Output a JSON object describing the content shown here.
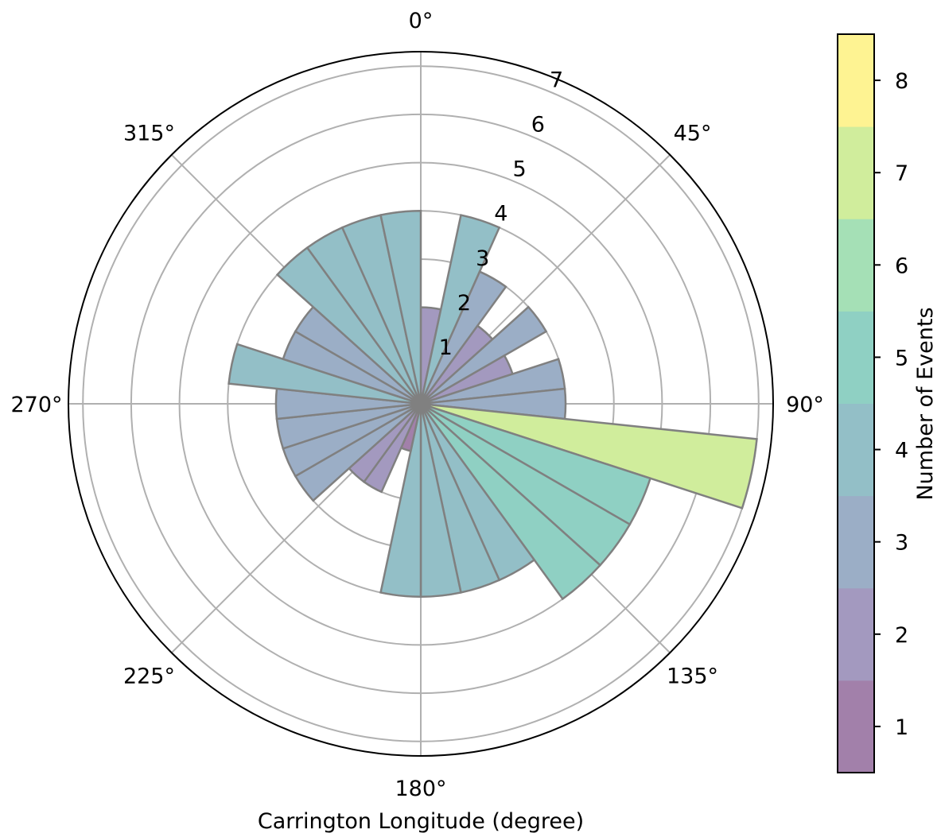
{
  "chart_data": {
    "type": "polar-bar",
    "xlabel": "Carrington Longitude (degree)",
    "theta_zero": "top",
    "theta_direction": "clockwise",
    "theta_ticks": [
      {
        "angle": 0,
        "label": "0°"
      },
      {
        "angle": 45,
        "label": "45°"
      },
      {
        "angle": 90,
        "label": "90°"
      },
      {
        "angle": 135,
        "label": "135°"
      },
      {
        "angle": 180,
        "label": "180°"
      },
      {
        "angle": 225,
        "label": "225°"
      },
      {
        "angle": 270,
        "label": "270°"
      },
      {
        "angle": 315,
        "label": "315°"
      }
    ],
    "r_ticks": [
      1,
      2,
      3,
      4,
      5,
      6,
      7
    ],
    "r_tick_labels": [
      "1",
      "2",
      "3",
      "4",
      "5",
      "6",
      "7"
    ],
    "rlim": [
      0,
      7.3
    ],
    "grid": true,
    "bin_width_deg": 12,
    "bars": [
      {
        "center": 6,
        "value": 2
      },
      {
        "center": 18,
        "value": 4
      },
      {
        "center": 30,
        "value": 3
      },
      {
        "center": 42,
        "value": 2
      },
      {
        "center": 54,
        "value": 3
      },
      {
        "center": 66,
        "value": 2
      },
      {
        "center": 78,
        "value": 3
      },
      {
        "center": 90,
        "value": 3
      },
      {
        "center": 102,
        "value": 7
      },
      {
        "center": 114,
        "value": 5
      },
      {
        "center": 126,
        "value": 5
      },
      {
        "center": 138,
        "value": 5
      },
      {
        "center": 150,
        "value": 4
      },
      {
        "center": 162,
        "value": 4
      },
      {
        "center": 174,
        "value": 4
      },
      {
        "center": 186,
        "value": 4
      },
      {
        "center": 198,
        "value": 1
      },
      {
        "center": 210,
        "value": 2
      },
      {
        "center": 222,
        "value": 2
      },
      {
        "center": 234,
        "value": 3
      },
      {
        "center": 246,
        "value": 3
      },
      {
        "center": 258,
        "value": 3
      },
      {
        "center": 270,
        "value": 3
      },
      {
        "center": 282,
        "value": 4
      },
      {
        "center": 294,
        "value": 3
      },
      {
        "center": 306,
        "value": 3
      },
      {
        "center": 318,
        "value": 4
      },
      {
        "center": 330,
        "value": 4
      },
      {
        "center": 342,
        "value": 4
      },
      {
        "center": 354,
        "value": 4
      }
    ],
    "bar_edge_color": "#808080",
    "bar_alpha": 0.5,
    "colorbar": {
      "label": "Number of Events",
      "ticks": [
        1,
        2,
        3,
        4,
        5,
        6,
        7,
        8
      ],
      "tick_labels": [
        "1",
        "2",
        "3",
        "4",
        "5",
        "6",
        "7",
        "8"
      ],
      "range": [
        0.5,
        8.5
      ],
      "colors": [
        "#440154",
        "#46337e",
        "#365c8d",
        "#277f8e",
        "#1fa187",
        "#4ac16d",
        "#a0da39",
        "#fde725"
      ]
    }
  }
}
